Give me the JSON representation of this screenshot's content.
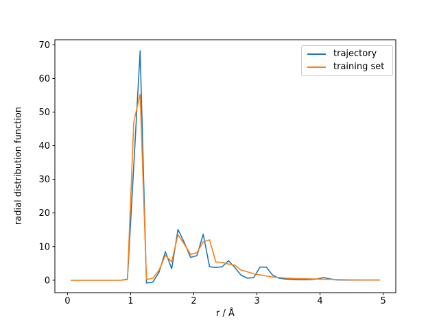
{
  "figure": {
    "background": "#ffffff"
  },
  "chart_data": {
    "type": "line",
    "title": "",
    "xlabel": "r / Å",
    "ylabel": "radial distribution function",
    "xlim": [
      -0.2,
      5.2
    ],
    "ylim": [
      -3.7,
      71.5
    ],
    "xticks": [
      0,
      1,
      2,
      3,
      4,
      5
    ],
    "yticks": [
      0,
      10,
      20,
      30,
      40,
      50,
      60,
      70
    ],
    "grid": false,
    "legend_position": "upper right",
    "x": [
      0.05,
      0.15,
      0.25,
      0.35,
      0.45,
      0.55,
      0.65,
      0.75,
      0.85,
      0.95,
      1.05,
      1.15,
      1.25,
      1.35,
      1.45,
      1.55,
      1.65,
      1.75,
      1.85,
      1.95,
      2.05,
      2.15,
      2.25,
      2.35,
      2.45,
      2.55,
      2.65,
      2.75,
      2.85,
      2.95,
      3.05,
      3.15,
      3.25,
      3.35,
      3.45,
      3.55,
      3.65,
      3.75,
      3.85,
      3.95,
      4.05,
      4.15,
      4.25,
      4.35,
      4.45,
      4.55,
      4.65,
      4.75,
      4.85,
      4.95
    ],
    "series": [
      {
        "name": "trajectory",
        "color": "#1f77b4",
        "values": [
          0,
          0,
          0,
          0,
          0,
          0,
          0,
          0,
          0,
          0.3,
          34,
          68.2,
          -0.8,
          -0.6,
          2.4,
          8.5,
          3.4,
          15.1,
          11.2,
          6.8,
          7.3,
          13.7,
          4.0,
          3.8,
          4.0,
          5.8,
          3.8,
          1.5,
          0.6,
          0.8,
          3.9,
          3.9,
          1.5,
          0.6,
          0.35,
          0.25,
          0.2,
          0.15,
          0.2,
          0.35,
          0.8,
          0.45,
          0.1,
          0.05,
          0.05,
          0.05,
          0.05,
          0.05,
          0.05,
          0.05
        ]
      },
      {
        "name": "training set",
        "color": "#ff7f0e",
        "values": [
          0,
          0,
          0,
          0,
          0,
          0,
          0,
          0,
          0,
          0.2,
          47,
          55.3,
          0.2,
          0.6,
          3.0,
          7.4,
          5.5,
          13.5,
          10.7,
          7.7,
          8.2,
          11.4,
          12.0,
          5.4,
          5.3,
          4.8,
          4.5,
          3.0,
          2.5,
          1.9,
          1.6,
          1.25,
          0.95,
          0.8,
          0.65,
          0.55,
          0.5,
          0.45,
          0.4,
          0.35,
          0.3,
          0.25,
          0.2,
          0.15,
          0.12,
          0.1,
          0.08,
          0.06,
          0.05,
          0.05
        ]
      }
    ]
  }
}
